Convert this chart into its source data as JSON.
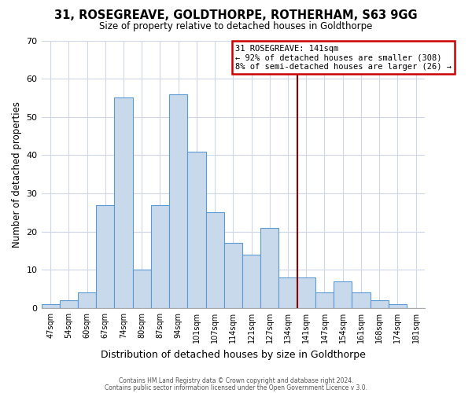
{
  "title": "31, ROSEGREAVE, GOLDTHORPE, ROTHERHAM, S63 9GG",
  "subtitle": "Size of property relative to detached houses in Goldthorpe",
  "xlabel": "Distribution of detached houses by size in Goldthorpe",
  "ylabel": "Number of detached properties",
  "bin_labels": [
    "47sqm",
    "54sqm",
    "60sqm",
    "67sqm",
    "74sqm",
    "80sqm",
    "87sqm",
    "94sqm",
    "101sqm",
    "107sqm",
    "114sqm",
    "121sqm",
    "127sqm",
    "134sqm",
    "141sqm",
    "147sqm",
    "154sqm",
    "161sqm",
    "168sqm",
    "174sqm",
    "181sqm"
  ],
  "bar_values": [
    1,
    2,
    4,
    27,
    55,
    10,
    27,
    56,
    41,
    25,
    17,
    14,
    21,
    8,
    8,
    4,
    7,
    4,
    2,
    1,
    0
  ],
  "bar_color": "#c8d9ec",
  "bar_edgecolor": "#5b9bd5",
  "vline_x_index": 14,
  "vline_color": "#8b0000",
  "ylim": [
    0,
    70
  ],
  "yticks": [
    0,
    10,
    20,
    30,
    40,
    50,
    60,
    70
  ],
  "annotation_title": "31 ROSEGREAVE: 141sqm",
  "annotation_line1": "← 92% of detached houses are smaller (308)",
  "annotation_line2": "8% of semi-detached houses are larger (26) →",
  "annotation_box_color": "#ffffff",
  "annotation_box_edgecolor": "#cc0000",
  "footer_line1": "Contains HM Land Registry data © Crown copyright and database right 2024.",
  "footer_line2": "Contains public sector information licensed under the Open Government Licence v 3.0.",
  "bg_color": "#ffffff",
  "plot_bg_color": "#ffffff",
  "grid_color": "#d0d8e8"
}
